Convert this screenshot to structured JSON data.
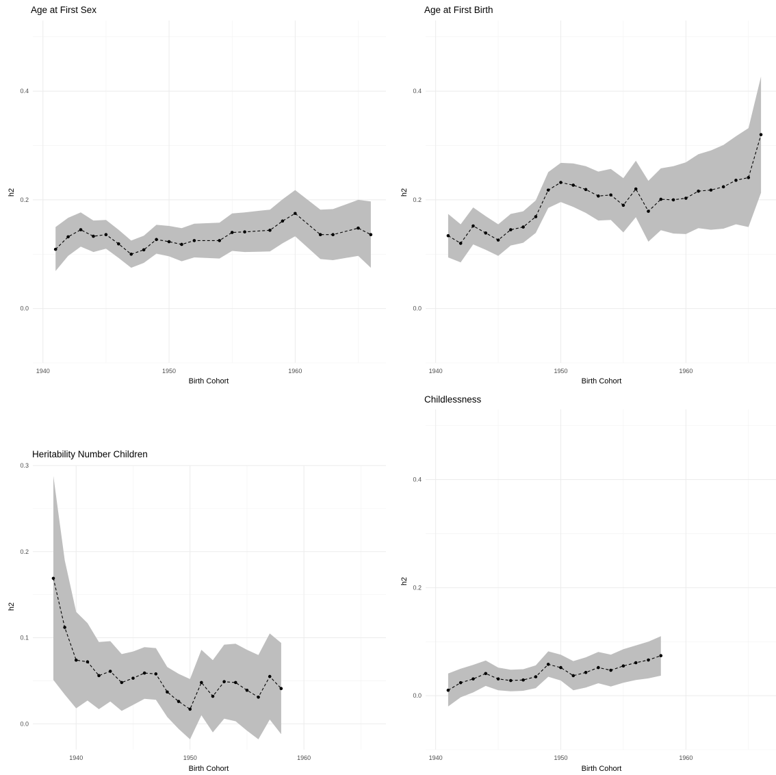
{
  "chart_data": [
    {
      "type": "line",
      "title": "Age at First Sex",
      "xlabel": "Birth Cohort",
      "ylabel": "h2",
      "xlim": [
        1939.2,
        1967.2
      ],
      "ylim": [
        -0.1,
        0.53
      ],
      "xticks": [
        1940,
        1950,
        1960
      ],
      "yticks": [
        0.0,
        0.2,
        0.4
      ],
      "grid": true,
      "series": [
        {
          "x": [
            1941,
            1942,
            1943,
            1944,
            1945,
            1946,
            1947,
            1948,
            1949,
            1950,
            1951,
            1952,
            1954,
            1955,
            1956,
            1958,
            1959,
            1960,
            1962,
            1963,
            1965,
            1966
          ],
          "y": [
            0.109,
            0.132,
            0.145,
            0.133,
            0.136,
            0.119,
            0.1,
            0.108,
            0.127,
            0.123,
            0.118,
            0.125,
            0.125,
            0.14,
            0.141,
            0.144,
            0.161,
            0.175,
            0.136,
            0.136,
            0.148,
            0.136
          ],
          "lower": [
            0.069,
            0.097,
            0.114,
            0.104,
            0.11,
            0.093,
            0.075,
            0.084,
            0.101,
            0.096,
            0.087,
            0.094,
            0.092,
            0.106,
            0.104,
            0.105,
            0.12,
            0.133,
            0.091,
            0.089,
            0.097,
            0.075
          ],
          "upper": [
            0.15,
            0.167,
            0.177,
            0.162,
            0.163,
            0.145,
            0.125,
            0.134,
            0.154,
            0.152,
            0.148,
            0.156,
            0.158,
            0.175,
            0.177,
            0.182,
            0.201,
            0.218,
            0.182,
            0.183,
            0.2,
            0.197
          ]
        }
      ]
    },
    {
      "type": "line",
      "title": "Age at First Birth",
      "xlabel": "Birth Cohort",
      "ylabel": "h2",
      "xlim": [
        1939.2,
        1967.2
      ],
      "ylim": [
        -0.1,
        0.53
      ],
      "xticks": [
        1940,
        1950,
        1960
      ],
      "yticks": [
        0.0,
        0.2,
        0.4
      ],
      "grid": true,
      "series": [
        {
          "x": [
            1941,
            1942,
            1943,
            1944,
            1945,
            1946,
            1947,
            1948,
            1949,
            1950,
            1951,
            1952,
            1953,
            1954,
            1955,
            1956,
            1957,
            1958,
            1959,
            1960,
            1961,
            1962,
            1963,
            1964,
            1965,
            1966
          ],
          "y": [
            0.134,
            0.12,
            0.152,
            0.139,
            0.126,
            0.145,
            0.15,
            0.169,
            0.218,
            0.232,
            0.227,
            0.219,
            0.207,
            0.209,
            0.19,
            0.22,
            0.179,
            0.201,
            0.2,
            0.203,
            0.216,
            0.218,
            0.224,
            0.236,
            0.241,
            0.32
          ],
          "lower": [
            0.094,
            0.085,
            0.118,
            0.108,
            0.097,
            0.116,
            0.121,
            0.139,
            0.185,
            0.196,
            0.187,
            0.176,
            0.162,
            0.163,
            0.14,
            0.168,
            0.123,
            0.144,
            0.138,
            0.137,
            0.148,
            0.145,
            0.147,
            0.155,
            0.15,
            0.213
          ],
          "upper": [
            0.174,
            0.155,
            0.186,
            0.17,
            0.155,
            0.174,
            0.179,
            0.199,
            0.251,
            0.268,
            0.267,
            0.262,
            0.252,
            0.257,
            0.24,
            0.272,
            0.235,
            0.258,
            0.262,
            0.269,
            0.284,
            0.291,
            0.301,
            0.317,
            0.332,
            0.427
          ]
        }
      ]
    },
    {
      "type": "line",
      "title": "Heritability Number Children",
      "xlabel": "Birth Cohort",
      "ylabel": "h2",
      "xlim": [
        1936.2,
        1967.2
      ],
      "ylim": [
        -0.03,
        0.3
      ],
      "xticks": [
        1940,
        1950,
        1960
      ],
      "yticks": [
        0.0,
        0.1,
        0.2,
        0.3
      ],
      "grid": true,
      "series": [
        {
          "x": [
            1938,
            1939,
            1940,
            1941,
            1942,
            1943,
            1944,
            1945,
            1946,
            1947,
            1948,
            1949,
            1950,
            1951,
            1952,
            1953,
            1954,
            1955,
            1956,
            1957,
            1958
          ],
          "y": [
            0.169,
            0.112,
            0.074,
            0.072,
            0.056,
            0.061,
            0.048,
            0.053,
            0.059,
            0.058,
            0.037,
            0.026,
            0.017,
            0.048,
            0.032,
            0.049,
            0.048,
            0.039,
            0.031,
            0.055,
            0.041
          ],
          "lower": [
            0.051,
            0.034,
            0.018,
            0.027,
            0.017,
            0.026,
            0.015,
            0.022,
            0.029,
            0.028,
            0.008,
            -0.006,
            -0.018,
            0.01,
            -0.01,
            0.006,
            0.003,
            -0.008,
            -0.018,
            0.005,
            -0.012
          ],
          "upper": [
            0.288,
            0.19,
            0.13,
            0.117,
            0.095,
            0.096,
            0.081,
            0.084,
            0.089,
            0.088,
            0.066,
            0.058,
            0.052,
            0.086,
            0.074,
            0.092,
            0.093,
            0.086,
            0.08,
            0.105,
            0.094
          ]
        }
      ]
    },
    {
      "type": "line",
      "title": "Childlessness",
      "xlabel": "Birth Cohort",
      "ylabel": "h2",
      "xlim": [
        1939.2,
        1967.2
      ],
      "ylim": [
        -0.1,
        0.53
      ],
      "xticks": [
        1940,
        1950,
        1960
      ],
      "yticks": [
        0.0,
        0.2,
        0.4
      ],
      "grid": true,
      "series": [
        {
          "x": [
            1941,
            1942,
            1943,
            1944,
            1945,
            1946,
            1947,
            1948,
            1949,
            1950,
            1951,
            1952,
            1953,
            1954,
            1955,
            1956,
            1957,
            1958
          ],
          "y": [
            0.01,
            0.024,
            0.031,
            0.041,
            0.031,
            0.028,
            0.029,
            0.035,
            0.058,
            0.052,
            0.037,
            0.043,
            0.052,
            0.047,
            0.055,
            0.061,
            0.066,
            0.074
          ],
          "lower": [
            -0.02,
            -0.003,
            0.006,
            0.018,
            0.01,
            0.008,
            0.009,
            0.014,
            0.035,
            0.028,
            0.01,
            0.015,
            0.023,
            0.017,
            0.024,
            0.029,
            0.032,
            0.037
          ],
          "upper": [
            0.041,
            0.05,
            0.057,
            0.065,
            0.052,
            0.048,
            0.049,
            0.056,
            0.082,
            0.076,
            0.064,
            0.071,
            0.081,
            0.076,
            0.086,
            0.093,
            0.1,
            0.11
          ]
        }
      ]
    }
  ]
}
